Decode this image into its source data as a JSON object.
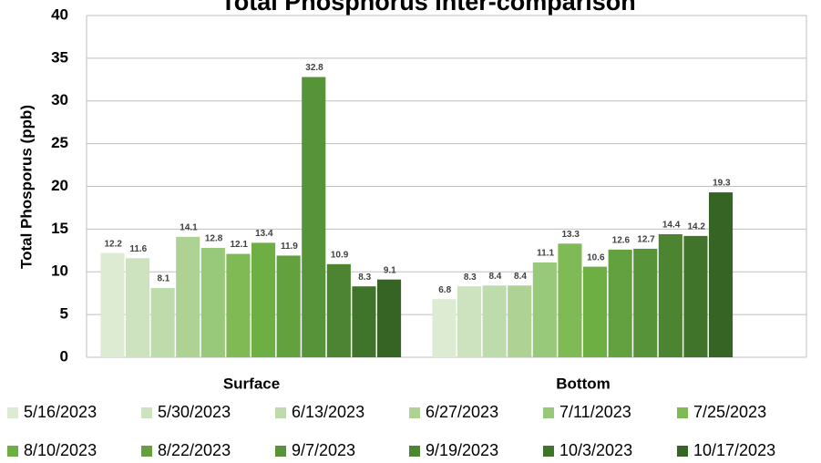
{
  "chart_data": {
    "type": "bar",
    "title": "Total Phosphorus Inter-comparison",
    "y_label": "Total Phosporus (ppb)",
    "categories": [
      "Surface",
      "Bottom"
    ],
    "series": [
      {
        "name": "5/16/2023",
        "color": "#dcebd2",
        "values": [
          12.2,
          6.8
        ]
      },
      {
        "name": "5/30/2023",
        "color": "#cde3bf",
        "values": [
          11.6,
          8.3
        ]
      },
      {
        "name": "6/13/2023",
        "color": "#bedbac",
        "values": [
          8.1,
          8.4
        ]
      },
      {
        "name": "6/27/2023",
        "color": "#add293",
        "values": [
          14.1,
          8.4
        ]
      },
      {
        "name": "7/11/2023",
        "color": "#98c97a",
        "values": [
          12.8,
          11.1
        ]
      },
      {
        "name": "7/25/2023",
        "color": "#7fba55",
        "values": [
          12.1,
          13.3
        ]
      },
      {
        "name": "8/10/2023",
        "color": "#6eaf43",
        "values": [
          13.4,
          10.6
        ]
      },
      {
        "name": "8/22/2023",
        "color": "#62a13d",
        "values": [
          11.9,
          12.6
        ]
      },
      {
        "name": "9/7/2023",
        "color": "#579338",
        "values": [
          32.8,
          12.7
        ]
      },
      {
        "name": "9/19/2023",
        "color": "#4c8432",
        "values": [
          10.9,
          14.4
        ]
      },
      {
        "name": "10/3/2023",
        "color": "#41742b",
        "values": [
          8.3,
          14.2
        ]
      },
      {
        "name": "10/17/2023",
        "color": "#366425",
        "values": [
          9.1,
          19.3
        ]
      }
    ],
    "ylim": [
      0,
      40
    ],
    "yticks": [
      0,
      5,
      10,
      15,
      20,
      25,
      30,
      35,
      40
    ],
    "grid": true
  }
}
